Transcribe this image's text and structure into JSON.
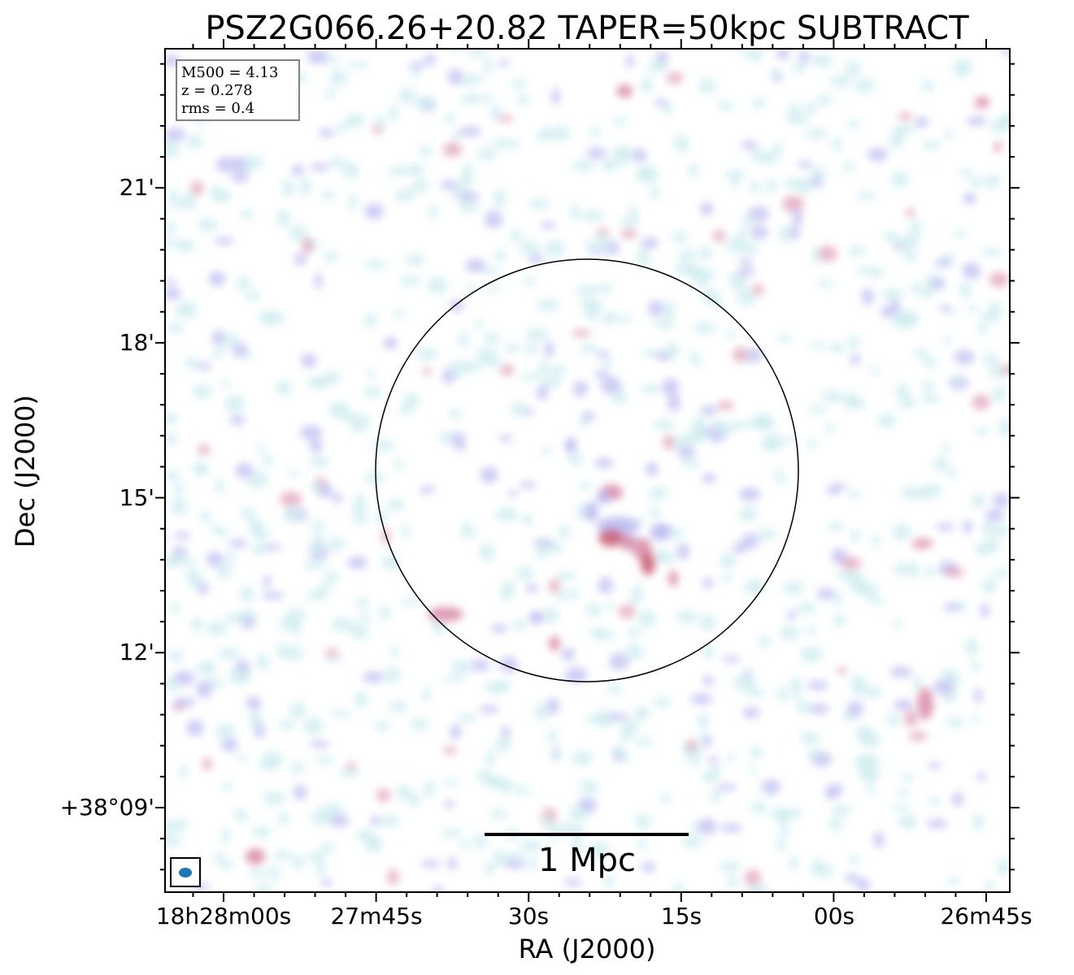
{
  "chart_data": {
    "type": "heatmap",
    "title": "PSZ2G066.26+20.82 TAPER=50kpc SUBTRACT",
    "xlabel": "RA (J2000)",
    "ylabel": "Dec (J2000)",
    "x_ticks": [
      "18h28m00s",
      "27m45s",
      "30s",
      "15s",
      "00s",
      "26m45s"
    ],
    "y_ticks": [
      "+38°09'",
      "12'",
      "15'",
      "18'",
      "21'"
    ],
    "info_box": {
      "line1": "M500 = 4.13",
      "line2": "z = 0.278",
      "line3": "rms = 0.4"
    },
    "scale_bar_label": "1 Mpc",
    "circle": "R500 aperture centred on cluster",
    "colors": {
      "low": "#c5e8ec",
      "mid": "#b9b6f0",
      "high": "#d88aa8",
      "peak": "#c85a70",
      "beam": "#1f77b4"
    }
  }
}
